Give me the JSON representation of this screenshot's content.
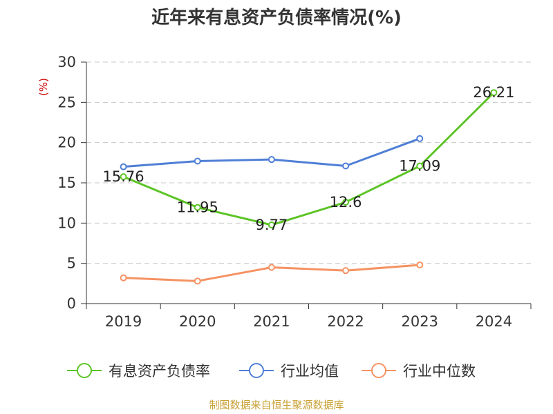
{
  "chart_data": {
    "type": "line",
    "title": "近年来有息资产负债率情况(%)",
    "ylabel": "(%)",
    "xlabel": "",
    "categories": [
      "2019",
      "2020",
      "2021",
      "2022",
      "2023",
      "2024"
    ],
    "ylim": [
      0,
      30
    ],
    "yticks": [
      "0",
      "5",
      "10",
      "15",
      "20",
      "25",
      "30"
    ],
    "grid": true,
    "legend_position": "bottom",
    "series": [
      {
        "name": "有息资产负债率",
        "color": "#5cc426",
        "values": [
          15.76,
          11.95,
          9.77,
          12.6,
          17.09,
          26.21
        ],
        "labels": [
          "15.76",
          "11.95",
          "9.77",
          "12.6",
          "17.09",
          "26.21"
        ]
      },
      {
        "name": "行业均值",
        "color": "#4f7fd6",
        "values": [
          17.0,
          17.7,
          17.9,
          17.1,
          20.5,
          null
        ]
      },
      {
        "name": "行业中位数",
        "color": "#f59262",
        "values": [
          3.2,
          2.8,
          4.5,
          4.1,
          4.8,
          null
        ]
      }
    ]
  },
  "source": "制图数据来自恒生聚源数据库"
}
